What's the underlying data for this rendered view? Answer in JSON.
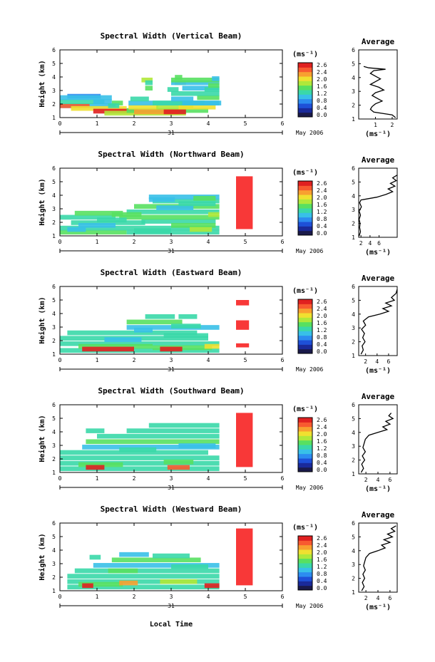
{
  "figure": {
    "xlabel": "Local Time",
    "date_label": "May 2006",
    "day_label": "31",
    "height_label": "Height (km)",
    "unit_label": "(ms⁻¹)",
    "average_title": "Average"
  },
  "colorbar": {
    "ticks": [
      "2.6",
      "2.4",
      "2.0",
      "1.6",
      "1.2",
      "0.8",
      "0.4",
      "0.0"
    ],
    "ticks_alt": [
      "2.6",
      "2.4",
      "2.0",
      "1.6",
      "1.2",
      "0.8",
      "0.4",
      "0.0"
    ],
    "colors": [
      "#1a1a4a",
      "#1a2a9a",
      "#1e50d8",
      "#2c8cf0",
      "#38c0e8",
      "#3ad8a8",
      "#58e060",
      "#b0e83a",
      "#f0e030",
      "#f8a030",
      "#f85a30",
      "#e02020"
    ],
    "flag_color": "#f83838"
  },
  "chart_data": [
    {
      "type": "heatmap",
      "title": "Spectral Width (Vertical Beam)",
      "xlabel": "",
      "ylabel": "Height (km)",
      "xlim": [
        0,
        6
      ],
      "ylim": [
        1,
        6
      ],
      "x_ticks": [
        "0",
        "1",
        "2",
        "3",
        "4",
        "5",
        "6"
      ],
      "y_ticks": [
        "1",
        "2",
        "3",
        "4",
        "5",
        "6"
      ],
      "data_extent_hours": [
        0,
        4.3
      ],
      "cells": [
        [
          0.0,
          1.5,
          1.7,
          0.9
        ],
        [
          0.0,
          0.8,
          1.7,
          2.4
        ],
        [
          0.3,
          1.5,
          1.5,
          1.8
        ],
        [
          0.9,
          1.2,
          1.3,
          2.6
        ],
        [
          1.2,
          2.2,
          1.15,
          1.6
        ],
        [
          0.0,
          1.2,
          2.0,
          1.1
        ],
        [
          0.2,
          0.9,
          2.4,
          0.8
        ],
        [
          0.9,
          0.5,
          2.0,
          1.0
        ],
        [
          1.4,
          0.3,
          1.9,
          1.3
        ],
        [
          0.0,
          0.8,
          2.3,
          1.0
        ],
        [
          0.8,
          0.6,
          2.3,
          1.0
        ],
        [
          1.3,
          0.3,
          1.7,
          1.1
        ],
        [
          1.8,
          2.2,
          1.35,
          1.4
        ],
        [
          1.85,
          0.8,
          1.6,
          1.8
        ],
        [
          2.6,
          1.0,
          1.6,
          1.6
        ],
        [
          3.2,
          1.0,
          1.6,
          2.0
        ],
        [
          2.0,
          1.2,
          1.25,
          2.2
        ],
        [
          2.8,
          0.6,
          1.25,
          2.5
        ],
        [
          1.85,
          2.5,
          1.9,
          1.0
        ],
        [
          2.5,
          1.4,
          1.9,
          1.2
        ],
        [
          3.3,
          1.0,
          1.9,
          1.0
        ],
        [
          1.9,
          0.5,
          2.2,
          1.2
        ],
        [
          3.0,
          0.6,
          2.2,
          1.0
        ],
        [
          3.7,
          0.6,
          2.3,
          1.3
        ],
        [
          3.0,
          1.3,
          2.6,
          1.2
        ],
        [
          3.3,
          1.0,
          3.0,
          0.9
        ],
        [
          3.1,
          0.3,
          3.4,
          1.6
        ],
        [
          2.9,
          0.3,
          2.9,
          1.2
        ],
        [
          3.9,
          0.4,
          2.9,
          1.1
        ],
        [
          2.3,
          0.2,
          3.0,
          1.4
        ],
        [
          3.0,
          1.3,
          3.4,
          0.9
        ],
        [
          3.0,
          1.3,
          3.6,
          1.3
        ],
        [
          2.2,
          0.3,
          3.6,
          1.7
        ],
        [
          2.3,
          0.2,
          3.4,
          1.2
        ],
        [
          3.1,
          0.2,
          3.8,
          1.5
        ],
        [
          4.1,
          0.2,
          3.7,
          1.0
        ],
        [
          4.0,
          0.3,
          3.2,
          1.4
        ]
      ],
      "flags": [],
      "average": {
        "xlim": [
          0,
          2.3
        ],
        "x_ticks": [
          "1",
          "2"
        ],
        "x_tick_values": [
          1,
          2
        ],
        "y": [
          1.1,
          1.3,
          1.5,
          1.7,
          1.9,
          2.1,
          2.3,
          2.5,
          2.7,
          2.9,
          3.1,
          3.3,
          3.5,
          3.7,
          3.9,
          4.1,
          4.3,
          4.5,
          4.6,
          4.7,
          4.8
        ],
        "x": [
          2.2,
          2.0,
          0.9,
          0.7,
          0.8,
          1.0,
          1.4,
          1.1,
          0.8,
          1.0,
          1.5,
          1.2,
          0.7,
          1.0,
          1.3,
          1.0,
          0.7,
          0.9,
          1.6,
          0.6,
          0.3
        ]
      }
    },
    {
      "type": "heatmap",
      "title": "Spectral Width (Northward Beam)",
      "xlabel": "",
      "ylabel": "Height (km)",
      "xlim": [
        0,
        6
      ],
      "ylim": [
        1,
        6
      ],
      "x_ticks": [
        "0",
        "1",
        "2",
        "3",
        "4",
        "5",
        "6"
      ],
      "y_ticks": [
        "1",
        "2",
        "3",
        "4",
        "5",
        "6"
      ],
      "data_extent_hours": [
        0,
        4.3
      ],
      "cells": [
        [
          0.0,
          1.8,
          1.1,
          1.3
        ],
        [
          1.8,
          2.5,
          1.1,
          1.1
        ],
        [
          0.0,
          4.3,
          1.4,
          1.2
        ],
        [
          0.3,
          2.0,
          1.8,
          1.2
        ],
        [
          2.2,
          2.0,
          1.9,
          1.1
        ],
        [
          0.0,
          1.5,
          2.2,
          1.1
        ],
        [
          1.6,
          2.7,
          2.2,
          1.3
        ],
        [
          0.4,
          1.3,
          2.5,
          1.4
        ],
        [
          1.8,
          2.5,
          2.6,
          1.2
        ],
        [
          2.0,
          2.3,
          3.0,
          1.3
        ],
        [
          2.5,
          1.8,
          3.4,
          1.1
        ],
        [
          2.4,
          1.9,
          3.7,
          1.0
        ],
        [
          0.5,
          1.0,
          1.6,
          1.0
        ],
        [
          3.0,
          1.2,
          1.6,
          1.4
        ],
        [
          1.0,
          0.8,
          2.0,
          1.2
        ],
        [
          2.6,
          1.0,
          2.9,
          0.9
        ],
        [
          3.2,
          1.0,
          3.2,
          1.2
        ],
        [
          4.0,
          0.3,
          2.4,
          1.6
        ],
        [
          0.2,
          0.5,
          1.3,
          1.0
        ],
        [
          3.5,
          0.6,
          1.3,
          1.6
        ],
        [
          2.4,
          0.7,
          3.5,
          0.9
        ],
        [
          3.6,
          0.6,
          3.6,
          1.3
        ],
        [
          1.4,
          0.8,
          2.4,
          1.3
        ],
        [
          2.0,
          1.0,
          1.2,
          1.1
        ]
      ],
      "flags": [
        [
          4.75,
          5.2,
          1.5,
          5.4
        ],
        [
          4.75,
          4.85,
          2.4,
          2.8
        ],
        [
          4.75,
          4.85,
          3.5,
          4.0
        ],
        [
          4.75,
          4.85,
          4.6,
          5.0
        ]
      ],
      "average": {
        "xlim": [
          1.5,
          10
        ],
        "x_ticks": [
          "2",
          "4",
          "6"
        ],
        "x_tick_values": [
          2,
          4,
          6
        ],
        "y": [
          1.1,
          1.4,
          1.7,
          2.0,
          2.3,
          2.6,
          2.9,
          3.2,
          3.5,
          3.7,
          3.9,
          4.1,
          4.3,
          4.5,
          4.7,
          4.9,
          5.1,
          5.3,
          5.5
        ],
        "x": [
          1.6,
          1.9,
          1.7,
          1.8,
          1.6,
          1.9,
          1.6,
          2.1,
          1.7,
          2.0,
          5.5,
          7.5,
          9.0,
          8.0,
          9.5,
          8.5,
          9.8,
          9.0,
          10.0
        ]
      }
    },
    {
      "type": "heatmap",
      "title": "Spectral Width (Eastward Beam)",
      "xlabel": "",
      "ylabel": "Height (km)",
      "xlim": [
        0,
        6
      ],
      "ylim": [
        1,
        6
      ],
      "x_ticks": [
        "0",
        "1",
        "2",
        "3",
        "4",
        "5",
        "6"
      ],
      "y_ticks": [
        "1",
        "2",
        "3",
        "4",
        "5",
        "6"
      ],
      "data_extent_hours": [
        0,
        4.3
      ],
      "cells": [
        [
          0.0,
          4.3,
          1.1,
          1.2
        ],
        [
          0.0,
          4.3,
          1.6,
          1.1
        ],
        [
          0.0,
          4.0,
          2.0,
          1.2
        ],
        [
          0.2,
          3.5,
          2.4,
          1.1
        ],
        [
          1.8,
          2.5,
          2.8,
          1.0
        ],
        [
          1.8,
          1.5,
          3.2,
          1.3
        ],
        [
          2.3,
          0.8,
          3.6,
          1.2
        ],
        [
          3.2,
          0.5,
          3.6,
          1.1
        ],
        [
          0.5,
          2.0,
          1.4,
          1.3
        ],
        [
          2.5,
          1.6,
          1.3,
          1.4
        ],
        [
          1.2,
          1.0,
          1.9,
          1.0
        ],
        [
          2.8,
          1.2,
          2.2,
          1.2
        ],
        [
          2.0,
          0.5,
          2.6,
          1.0
        ],
        [
          3.0,
          0.8,
          2.9,
          1.2
        ],
        [
          0.6,
          1.4,
          1.2,
          2.6
        ],
        [
          2.7,
          0.6,
          1.2,
          2.5
        ],
        [
          3.9,
          0.4,
          1.4,
          1.8
        ]
      ],
      "flags": [
        [
          4.75,
          5.1,
          4.6,
          5.0
        ],
        [
          4.75,
          5.1,
          2.8,
          3.5
        ],
        [
          4.75,
          5.1,
          1.5,
          1.8
        ]
      ],
      "average": {
        "xlim": [
          0.8,
          7.5
        ],
        "x_ticks": [
          "2",
          "4",
          "6"
        ],
        "x_tick_values": [
          2,
          4,
          6
        ],
        "y": [
          1.1,
          1.4,
          1.7,
          2.0,
          2.3,
          2.6,
          2.9,
          3.2,
          3.5,
          3.8,
          4.0,
          4.2,
          4.4,
          4.6,
          4.8,
          5.0,
          5.2,
          5.5,
          5.8
        ],
        "x": [
          1.2,
          1.6,
          1.4,
          1.9,
          1.5,
          1.8,
          1.3,
          2.0,
          1.6,
          2.5,
          4.5,
          6.0,
          5.0,
          6.5,
          5.5,
          7.0,
          6.5,
          7.3,
          7.5
        ]
      }
    },
    {
      "type": "heatmap",
      "title": "Spectral Width (Southward Beam)",
      "xlabel": "",
      "ylabel": "Height (km)",
      "xlim": [
        0,
        6
      ],
      "ylim": [
        1,
        6
      ],
      "x_ticks": [
        "0",
        "1",
        "2",
        "3",
        "4",
        "5",
        "6"
      ],
      "y_ticks": [
        "1",
        "2",
        "3",
        "4",
        "5",
        "6"
      ],
      "data_extent_hours": [
        0,
        4.3
      ],
      "cells": [
        [
          0.0,
          4.3,
          1.1,
          1.2
        ],
        [
          0.0,
          4.3,
          1.5,
          1.1
        ],
        [
          0.0,
          4.3,
          1.9,
          1.2
        ],
        [
          0.0,
          4.0,
          2.3,
          1.1
        ],
        [
          0.6,
          3.7,
          2.7,
          1.0
        ],
        [
          0.7,
          3.6,
          3.1,
          1.3
        ],
        [
          1.0,
          3.3,
          3.5,
          1.2
        ],
        [
          0.7,
          0.5,
          3.9,
          1.1
        ],
        [
          1.8,
          2.5,
          3.9,
          1.2
        ],
        [
          2.4,
          1.9,
          4.3,
          1.1
        ],
        [
          0.5,
          1.2,
          1.4,
          1.4
        ],
        [
          2.8,
          0.8,
          1.6,
          1.3
        ],
        [
          1.6,
          1.0,
          2.5,
          1.2
        ],
        [
          3.2,
          1.0,
          2.8,
          1.0
        ],
        [
          0.7,
          0.5,
          1.2,
          2.6
        ],
        [
          2.9,
          0.6,
          1.2,
          2.4
        ]
      ],
      "flags": [
        [
          4.75,
          5.2,
          1.4,
          5.4
        ],
        [
          4.75,
          4.85,
          2.0,
          2.5
        ],
        [
          4.75,
          4.85,
          3.0,
          3.6
        ],
        [
          4.75,
          4.85,
          4.1,
          4.6
        ]
      ],
      "average": {
        "xlim": [
          0.8,
          7.2
        ],
        "x_ticks": [
          "2",
          "4",
          "6"
        ],
        "x_tick_values": [
          2,
          4,
          6
        ],
        "y": [
          1.1,
          1.4,
          1.7,
          2.0,
          2.3,
          2.6,
          2.9,
          3.2,
          3.5,
          3.8,
          4.0,
          4.2,
          4.4,
          4.6,
          4.8,
          5.0,
          5.2,
          5.4
        ],
        "x": [
          1.2,
          1.6,
          1.3,
          1.8,
          1.4,
          1.9,
          1.5,
          1.7,
          1.9,
          2.5,
          4.0,
          5.5,
          4.8,
          6.0,
          5.3,
          6.5,
          5.8,
          6.2
        ]
      }
    },
    {
      "type": "heatmap",
      "title": "Spectral Width (Westward Beam)",
      "xlabel": "Local Time",
      "ylabel": "Height (km)",
      "xlim": [
        0,
        6
      ],
      "ylim": [
        1,
        6
      ],
      "x_ticks": [
        "0",
        "1",
        "2",
        "3",
        "4",
        "5",
        "6"
      ],
      "y_ticks": [
        "1",
        "2",
        "3",
        "4",
        "5",
        "6"
      ],
      "data_extent_hours": [
        0,
        4.3
      ],
      "cells": [
        [
          0.2,
          4.1,
          1.1,
          1.2
        ],
        [
          0.2,
          4.1,
          1.5,
          1.1
        ],
        [
          0.2,
          4.1,
          1.9,
          1.2
        ],
        [
          0.4,
          3.9,
          2.3,
          1.1
        ],
        [
          0.9,
          3.4,
          2.7,
          1.0
        ],
        [
          1.4,
          2.4,
          3.1,
          1.3
        ],
        [
          2.5,
          1.0,
          3.4,
          1.2
        ],
        [
          0.8,
          0.3,
          3.3,
          1.1
        ],
        [
          1.6,
          0.8,
          3.5,
          1.0
        ],
        [
          0.5,
          1.2,
          1.3,
          1.4
        ],
        [
          2.7,
          1.0,
          1.5,
          1.6
        ],
        [
          1.3,
          0.8,
          2.3,
          1.3
        ],
        [
          3.0,
          1.0,
          2.6,
          1.2
        ],
        [
          0.6,
          0.3,
          1.2,
          2.6
        ],
        [
          3.9,
          0.4,
          1.2,
          2.5
        ],
        [
          1.6,
          0.5,
          1.4,
          2.2
        ]
      ],
      "flags": [
        [
          4.75,
          5.2,
          1.4,
          5.6
        ],
        [
          4.75,
          4.85,
          2.0,
          2.5
        ],
        [
          4.75,
          4.85,
          3.0,
          3.6
        ],
        [
          4.75,
          4.85,
          4.2,
          4.8
        ]
      ],
      "average": {
        "xlim": [
          0.8,
          7.2
        ],
        "x_ticks": [
          "2",
          "4",
          "6"
        ],
        "x_tick_values": [
          2,
          4,
          6
        ],
        "y": [
          1.1,
          1.4,
          1.7,
          2.0,
          2.3,
          2.6,
          2.9,
          3.2,
          3.5,
          3.8,
          4.0,
          4.2,
          4.4,
          4.6,
          4.8,
          5.0,
          5.2,
          5.4,
          5.6,
          5.8
        ],
        "x": [
          1.3,
          1.7,
          1.4,
          1.8,
          1.5,
          1.9,
          1.6,
          1.8,
          2.0,
          2.6,
          4.0,
          5.2,
          4.6,
          6.0,
          5.0,
          6.4,
          5.6,
          6.8,
          6.2,
          7.0
        ]
      }
    }
  ]
}
